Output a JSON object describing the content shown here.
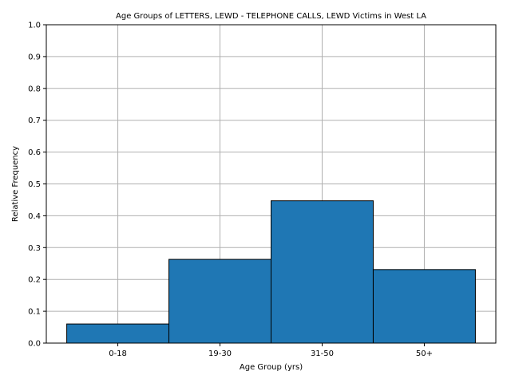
{
  "chart_data": {
    "type": "bar",
    "title": "Age Groups of LETTERS, LEWD  -  TELEPHONE CALLS, LEWD Victims in West LA",
    "xlabel": "Age Group (yrs)",
    "ylabel": "Relative Frequency",
    "categories": [
      "0-18",
      "19-30",
      "31-50",
      "50+"
    ],
    "values": [
      0.06,
      0.263,
      0.447,
      0.231
    ],
    "ylim": [
      0,
      1.0
    ],
    "yticks": [
      "0.0",
      "0.1",
      "0.2",
      "0.3",
      "0.4",
      "0.5",
      "0.6",
      "0.7",
      "0.8",
      "0.9",
      "1.0"
    ],
    "grid": true,
    "bar_color": "#1f77b4",
    "edge_color": "#000000",
    "grid_color": "#b0b0b0"
  }
}
